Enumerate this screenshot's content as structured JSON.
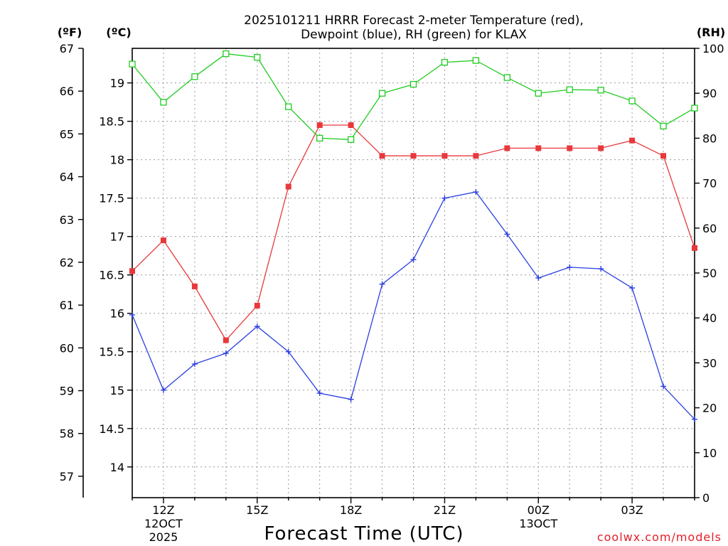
{
  "title_line1": "2025101211 HRRR Forecast 2-meter Temperature (red),",
  "title_line2": "Dewpoint (blue), RH (green) for KLAX",
  "unit_f": "(ºF)",
  "unit_c": "(ºC)",
  "unit_rh": "(RH)",
  "x_title": "Forecast Time (UTC)",
  "credit": "coolwx.com/models",
  "colors": {
    "temperature": "#e8383b",
    "dewpoint": "#2a3fe0",
    "rh": "#1fcc1f"
  },
  "chart_data": {
    "type": "line",
    "grid": true,
    "x_hours": [
      11,
      12,
      13,
      14,
      15,
      16,
      17,
      18,
      19,
      20,
      21,
      22,
      23,
      0,
      1,
      2,
      3,
      4,
      5
    ],
    "x_tick_labels": [
      {
        "label": "12Z",
        "sub1": "12OCT",
        "sub2": "2025"
      },
      {
        "label": "15Z",
        "sub1": "",
        "sub2": ""
      },
      {
        "label": "18Z",
        "sub1": "",
        "sub2": ""
      },
      {
        "label": "21Z",
        "sub1": "",
        "sub2": ""
      },
      {
        "label": "00Z",
        "sub1": "13OCT",
        "sub2": ""
      },
      {
        "label": "03Z",
        "sub1": "",
        "sub2": ""
      }
    ],
    "y_celsius": {
      "ylim": [
        13.6,
        19.45
      ],
      "ticks": [
        "14",
        "14.5",
        "15",
        "15.5",
        "16",
        "16.5",
        "17",
        "17.5",
        "18",
        "18.5",
        "19"
      ]
    },
    "y_fahrenheit": {
      "ylim": [
        56.5,
        67
      ],
      "ticks": [
        "57",
        "58",
        "59",
        "60",
        "61",
        "62",
        "63",
        "64",
        "65",
        "66",
        "67"
      ]
    },
    "y_rh": {
      "ylim": [
        0,
        100
      ],
      "ticks": [
        "0",
        "10",
        "20",
        "30",
        "40",
        "50",
        "60",
        "70",
        "80",
        "90",
        "100"
      ]
    },
    "series": [
      {
        "key": "temperature",
        "units": "C",
        "marker": "square",
        "values": [
          16.55,
          16.95,
          16.35,
          15.65,
          16.1,
          17.65,
          18.45,
          18.45,
          18.05,
          18.05,
          18.05,
          18.05,
          18.15,
          18.15,
          18.15,
          18.15,
          18.25,
          18.05,
          16.85
        ]
      },
      {
        "key": "dewpoint",
        "units": "C",
        "marker": "plus",
        "values": [
          15.98,
          15.0,
          15.34,
          15.48,
          15.83,
          15.5,
          14.96,
          14.88,
          16.38,
          16.7,
          17.5,
          17.58,
          17.03,
          16.46,
          16.6,
          16.58,
          16.33,
          15.05,
          14.62
        ]
      },
      {
        "key": "rh",
        "units": "%",
        "marker": "open-square",
        "values": [
          96.5,
          88,
          93.7,
          98.8,
          98,
          87,
          80,
          79.7,
          90,
          92,
          96.9,
          97.3,
          93.5,
          90,
          90.8,
          90.7,
          88.3,
          82.7,
          86.7
        ]
      }
    ]
  }
}
